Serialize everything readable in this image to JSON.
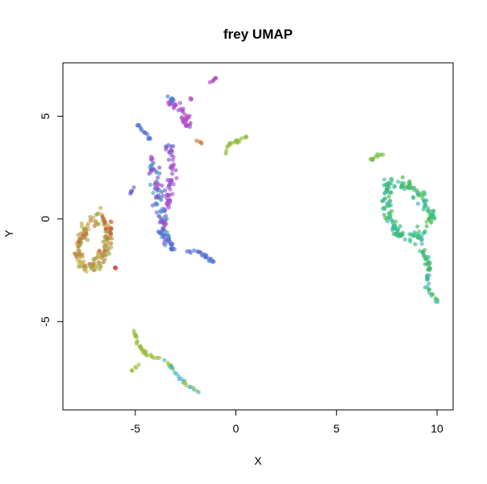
{
  "chart_data": {
    "type": "scatter",
    "title": "frey UMAP",
    "xlabel": "X",
    "ylabel": "Y",
    "xlim": [
      -8.6,
      10.8
    ],
    "ylim": [
      -9.3,
      7.6
    ],
    "xticks": [
      -5,
      0,
      5,
      10
    ],
    "yticks": [
      -5,
      0,
      5
    ],
    "grid": false,
    "legend": "none",
    "point_alpha": 0.65,
    "clusters": [
      {
        "path": [
          [
            -7.6,
            -2.4
          ],
          [
            -7.9,
            -1.6
          ],
          [
            -7.5,
            -0.5
          ],
          [
            -7.0,
            0.0
          ],
          [
            -6.5,
            0.1
          ],
          [
            -6.3,
            -0.8
          ],
          [
            -6.6,
            -1.8
          ],
          [
            -7.1,
            -2.3
          ],
          [
            -7.6,
            -2.4
          ]
        ],
        "spread": 0.25,
        "n": 170,
        "colors": [
          "#c8a84a",
          "#c46a3a",
          "#a9a545",
          "#b7913f",
          "#c9583a",
          "#8fae4a",
          "#d0b050"
        ]
      },
      {
        "path": [
          [
            -6.1,
            -2.3
          ],
          [
            -6.0,
            -2.4
          ]
        ],
        "spread": 0.05,
        "n": 4,
        "colors": [
          "#c9583a"
        ]
      },
      {
        "path": [
          [
            -5.1,
            1.5
          ],
          [
            -5.3,
            1.2
          ]
        ],
        "spread": 0.06,
        "n": 6,
        "colors": [
          "#7a5fd0"
        ]
      },
      {
        "path": [
          [
            -4.9,
            4.6
          ],
          [
            -4.2,
            3.8
          ]
        ],
        "spread": 0.06,
        "n": 14,
        "colors": [
          "#4d7ad8",
          "#5a6ad0"
        ]
      },
      {
        "path": [
          [
            -4.3,
            3.0
          ],
          [
            -3.9,
            1.5
          ],
          [
            -3.7,
            0.0
          ],
          [
            -3.5,
            -1.1
          ]
        ],
        "spread": 0.25,
        "n": 90,
        "colors": [
          "#6a5ad6",
          "#8a55d0",
          "#4a7ad8",
          "#b050c8",
          "#3ab0b8"
        ]
      },
      {
        "path": [
          [
            -3.3,
            3.6
          ],
          [
            -3.2,
            2.0
          ],
          [
            -3.4,
            0.5
          ]
        ],
        "spread": 0.2,
        "n": 55,
        "colors": [
          "#9a50d0",
          "#b34ec8",
          "#6a60d6"
        ]
      },
      {
        "path": [
          [
            -3.7,
            -0.6
          ],
          [
            -3.2,
            -1.2
          ],
          [
            -3.2,
            -1.8
          ]
        ],
        "spread": 0.18,
        "n": 25,
        "colors": [
          "#5a6ad0",
          "#7a5ad6",
          "#4d7ad8"
        ]
      },
      {
        "path": [
          [
            -3.3,
            5.7
          ],
          [
            -2.6,
            5.2
          ],
          [
            -2.4,
            4.4
          ]
        ],
        "spread": 0.2,
        "n": 45,
        "colors": [
          "#b04ec8",
          "#9a50d0",
          "#c050c0"
        ]
      },
      {
        "path": [
          [
            -3.1,
            5.6
          ],
          [
            -3.3,
            5.9
          ]
        ],
        "spread": 0.12,
        "n": 8,
        "colors": [
          "#4a7ad8"
        ]
      },
      {
        "path": [
          [
            -2.3,
            6.1
          ],
          [
            -2.2,
            5.8
          ]
        ],
        "spread": 0.05,
        "n": 3,
        "colors": [
          "#c050c0"
        ]
      },
      {
        "path": [
          [
            -1.3,
            6.6
          ],
          [
            -1.0,
            6.9
          ]
        ],
        "spread": 0.06,
        "n": 7,
        "colors": [
          "#b34ec8"
        ]
      },
      {
        "path": [
          [
            -2.5,
            -1.6
          ],
          [
            -1.9,
            -1.6
          ],
          [
            -1.5,
            -1.8
          ],
          [
            -1.1,
            -2.1
          ]
        ],
        "spread": 0.07,
        "n": 22,
        "colors": [
          "#4a7ad8",
          "#5a6ad0"
        ]
      },
      {
        "path": [
          [
            -2.0,
            3.8
          ],
          [
            -1.7,
            3.7
          ]
        ],
        "spread": 0.04,
        "n": 4,
        "colors": [
          "#c8803a"
        ]
      },
      {
        "path": [
          [
            -0.5,
            3.1
          ],
          [
            -0.4,
            3.6
          ],
          [
            0.1,
            3.8
          ],
          [
            0.6,
            4.0
          ]
        ],
        "spread": 0.08,
        "n": 22,
        "colors": [
          "#8fbc3a",
          "#9cc040"
        ]
      },
      {
        "path": [
          [
            -5.1,
            -5.4
          ],
          [
            -4.8,
            -6.2
          ],
          [
            -4.4,
            -6.6
          ],
          [
            -3.8,
            -6.8
          ]
        ],
        "spread": 0.08,
        "n": 30,
        "colors": [
          "#9cc040",
          "#a8c24a",
          "#8fbc3a"
        ]
      },
      {
        "path": [
          [
            -5.2,
            -7.4
          ],
          [
            -4.8,
            -7.1
          ]
        ],
        "spread": 0.05,
        "n": 6,
        "colors": [
          "#9cc040"
        ]
      },
      {
        "path": [
          [
            -3.6,
            -6.8
          ],
          [
            -2.9,
            -7.6
          ],
          [
            -2.5,
            -8.0
          ],
          [
            -1.7,
            -8.6
          ]
        ],
        "spread": 0.07,
        "n": 28,
        "colors": [
          "#a8c24a",
          "#b8c850",
          "#4ab8c0"
        ]
      },
      {
        "path": [
          [
            6.7,
            2.9
          ],
          [
            7.3,
            3.2
          ]
        ],
        "spread": 0.08,
        "n": 10,
        "colors": [
          "#5ab84a",
          "#7ac040"
        ]
      },
      {
        "path": [
          [
            7.5,
            1.6
          ],
          [
            8.5,
            1.7
          ],
          [
            9.3,
            1.0
          ],
          [
            9.7,
            0.1
          ],
          [
            9.2,
            -0.9
          ],
          [
            8.2,
            -0.8
          ],
          [
            7.6,
            -0.1
          ],
          [
            7.5,
            1.6
          ]
        ],
        "spread": 0.28,
        "n": 170,
        "colors": [
          "#3ab87a",
          "#3ac0a0",
          "#3ab0b8",
          "#4ab84a",
          "#2ec090",
          "#58c050"
        ]
      },
      {
        "path": [
          [
            9.1,
            -1.2
          ],
          [
            9.6,
            -2.2
          ],
          [
            9.5,
            -3.3
          ],
          [
            10.0,
            -4.1
          ]
        ],
        "spread": 0.14,
        "n": 45,
        "colors": [
          "#3ac0a8",
          "#3ab0c0",
          "#4ab84a",
          "#3ab87a"
        ]
      }
    ]
  }
}
